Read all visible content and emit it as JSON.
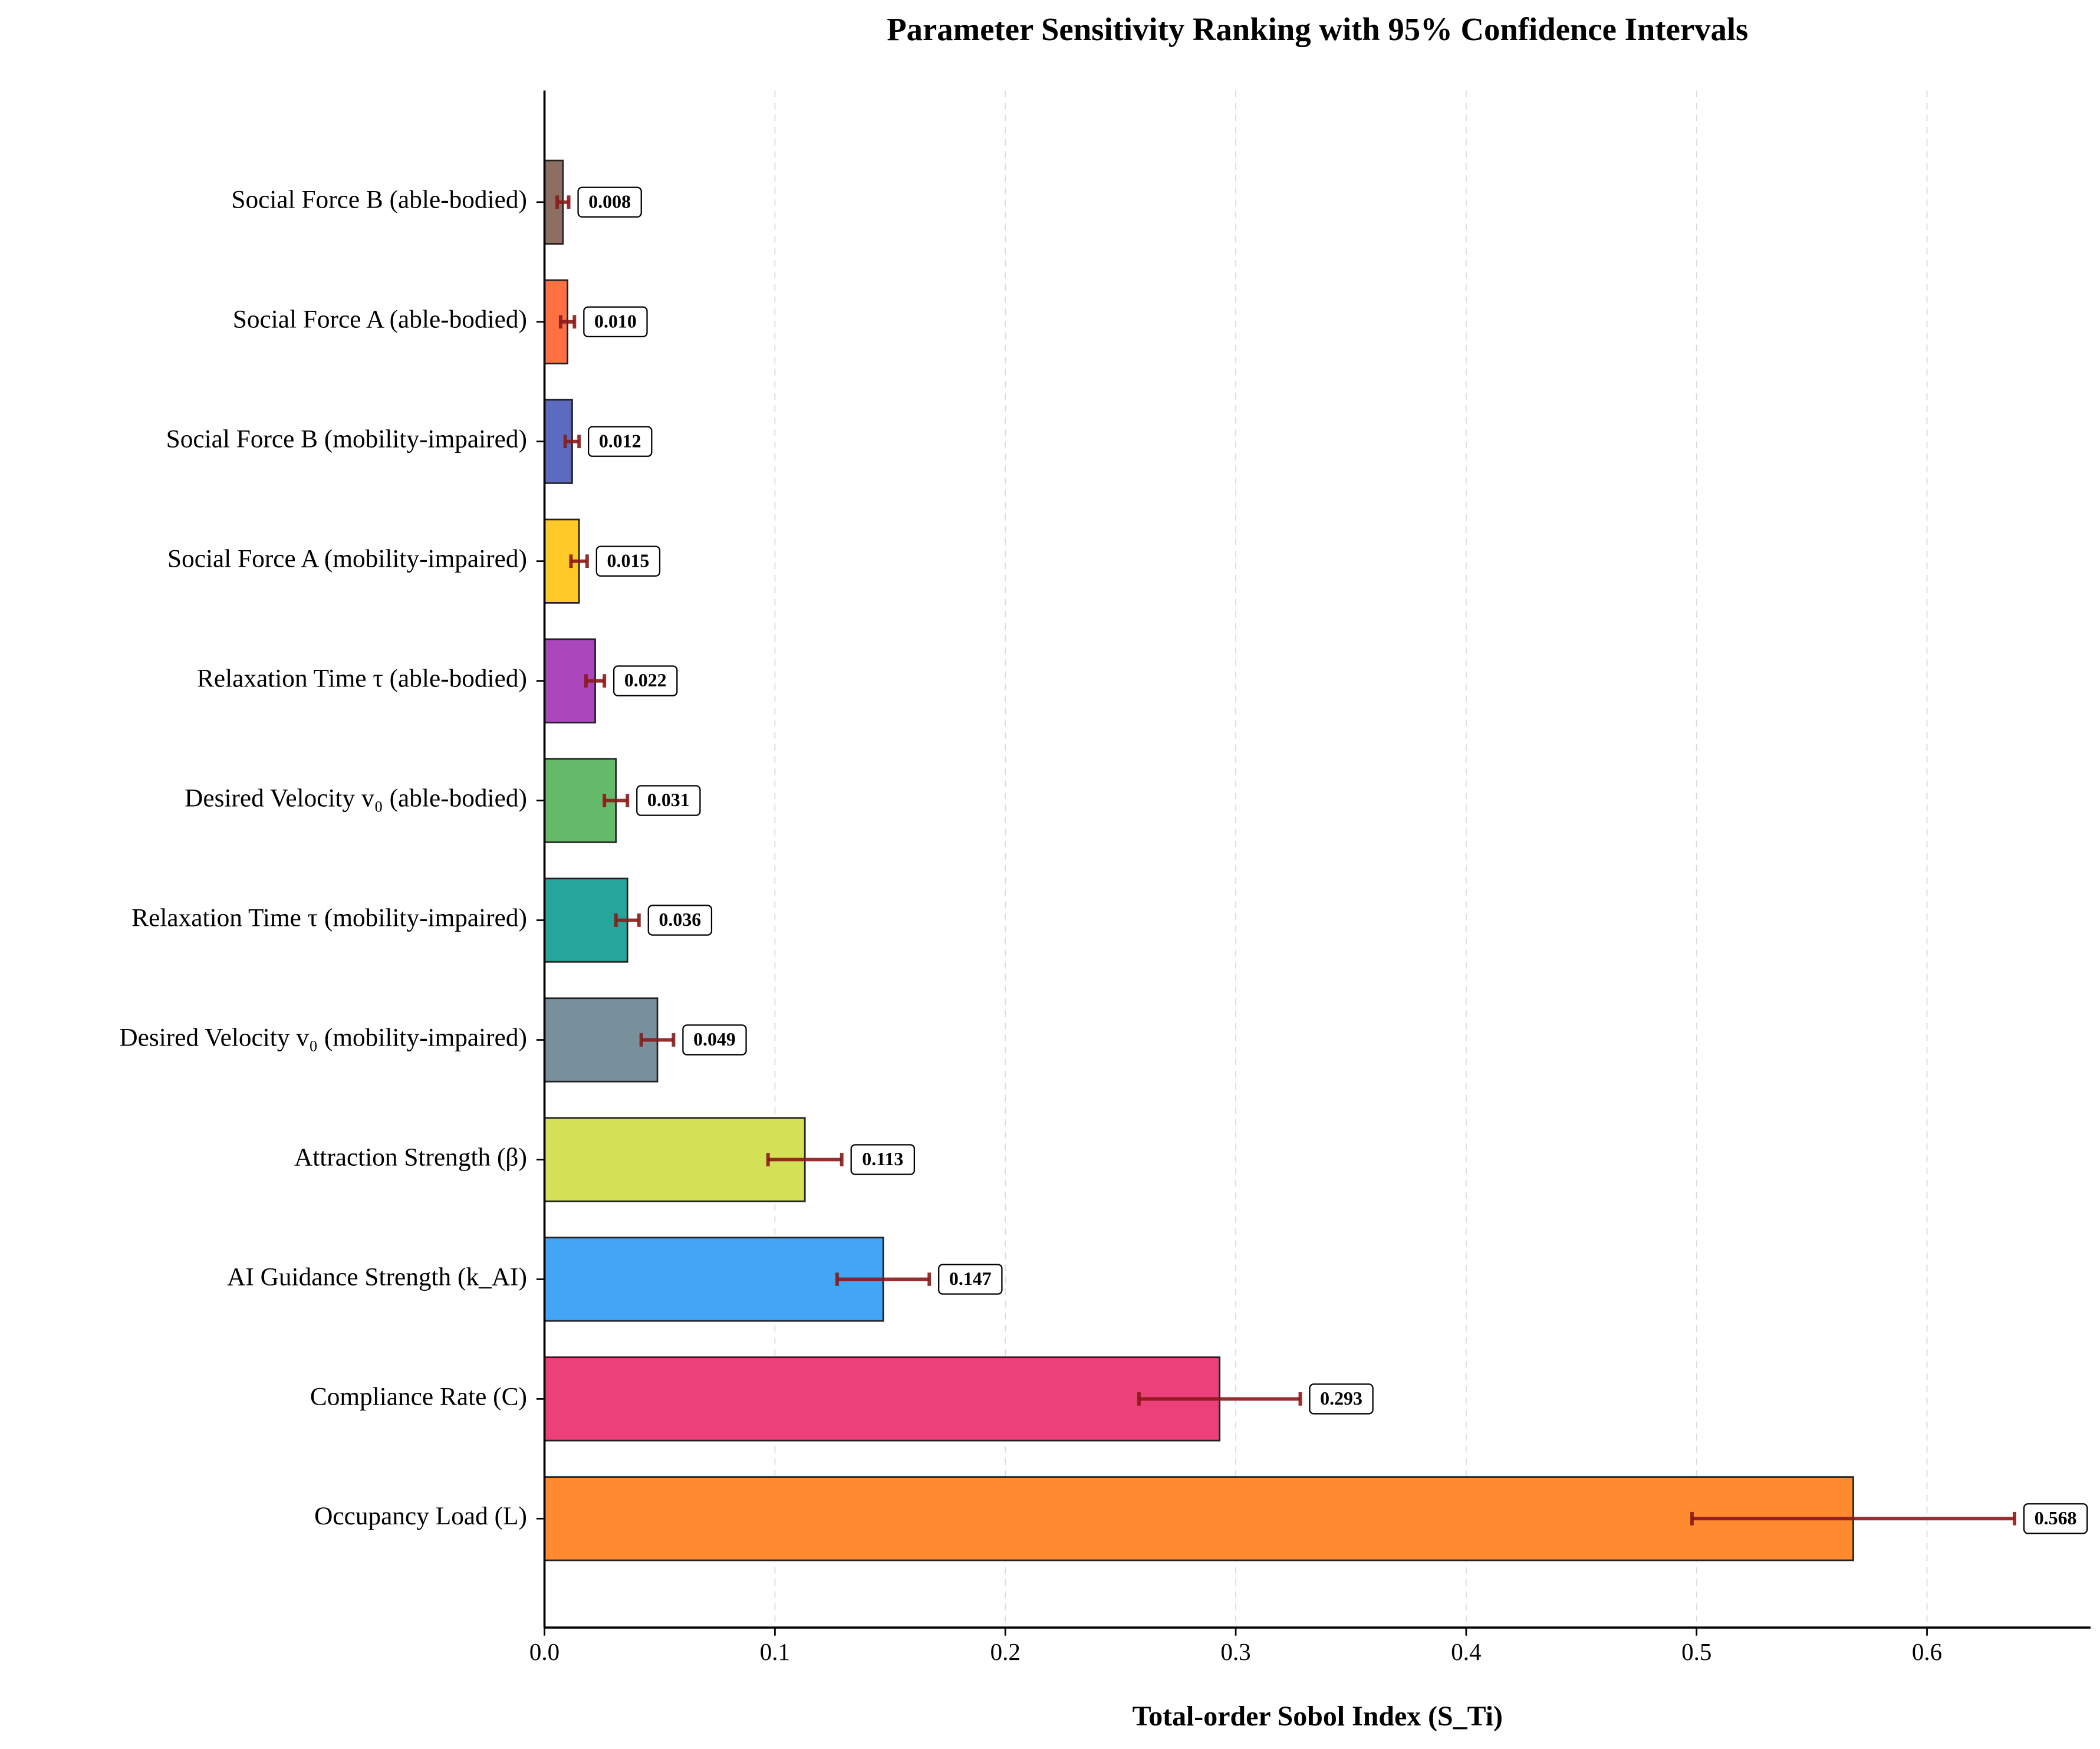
{
  "chart_data": {
    "type": "hbar",
    "title": "Parameter Sensitivity Ranking with 95% Confidence Intervals",
    "x_label": "Total-order Sobol Index (S_Ti)",
    "categories": [
      "Social Force B (able-bodied)",
      "Social Force A (able-bodied)",
      "Social Force B (mobility-impaired)",
      "Social Force A (mobility-impaired)",
      "Relaxation Time τ (able-bodied)",
      "Desired Velocity v₀ (able-bodied)",
      "Relaxation Time τ (mobility-impaired)",
      "Desired Velocity v₀ (mobility-impaired)",
      "Attraction Strength (β)",
      "AI Guidance Strength (k_AI)",
      "Compliance Rate (C)",
      "Occupancy Load (L)"
    ],
    "values": [
      0.008,
      0.01,
      0.012,
      0.015,
      0.022,
      0.031,
      0.036,
      0.049,
      0.113,
      0.147,
      0.293,
      0.568
    ],
    "value_labels": [
      "0.008",
      "0.010",
      "0.012",
      "0.015",
      "0.022",
      "0.031",
      "0.036",
      "0.049",
      "0.113",
      "0.147",
      "0.293",
      "0.568"
    ],
    "errors": [
      0.0025,
      0.003,
      0.003,
      0.0035,
      0.004,
      0.005,
      0.005,
      0.007,
      0.016,
      0.02,
      0.035,
      0.07
    ],
    "colors": [
      "#8d6e63",
      "#ff7043",
      "#5c6bc0",
      "#ffca28",
      "#ab47bc",
      "#66bb6a",
      "#26a69a",
      "#78909c",
      "#d4e157",
      "#42a5f5",
      "#ec407a",
      "#ff8a30"
    ],
    "error_color": "#8b1a1a",
    "xlim": [
      0,
      0.671
    ],
    "xticks": [
      {
        "value": 0,
        "label": "0.0"
      },
      0.1,
      0.2,
      0.3,
      0.4,
      0.5,
      0.6
    ],
    "grid": true
  }
}
